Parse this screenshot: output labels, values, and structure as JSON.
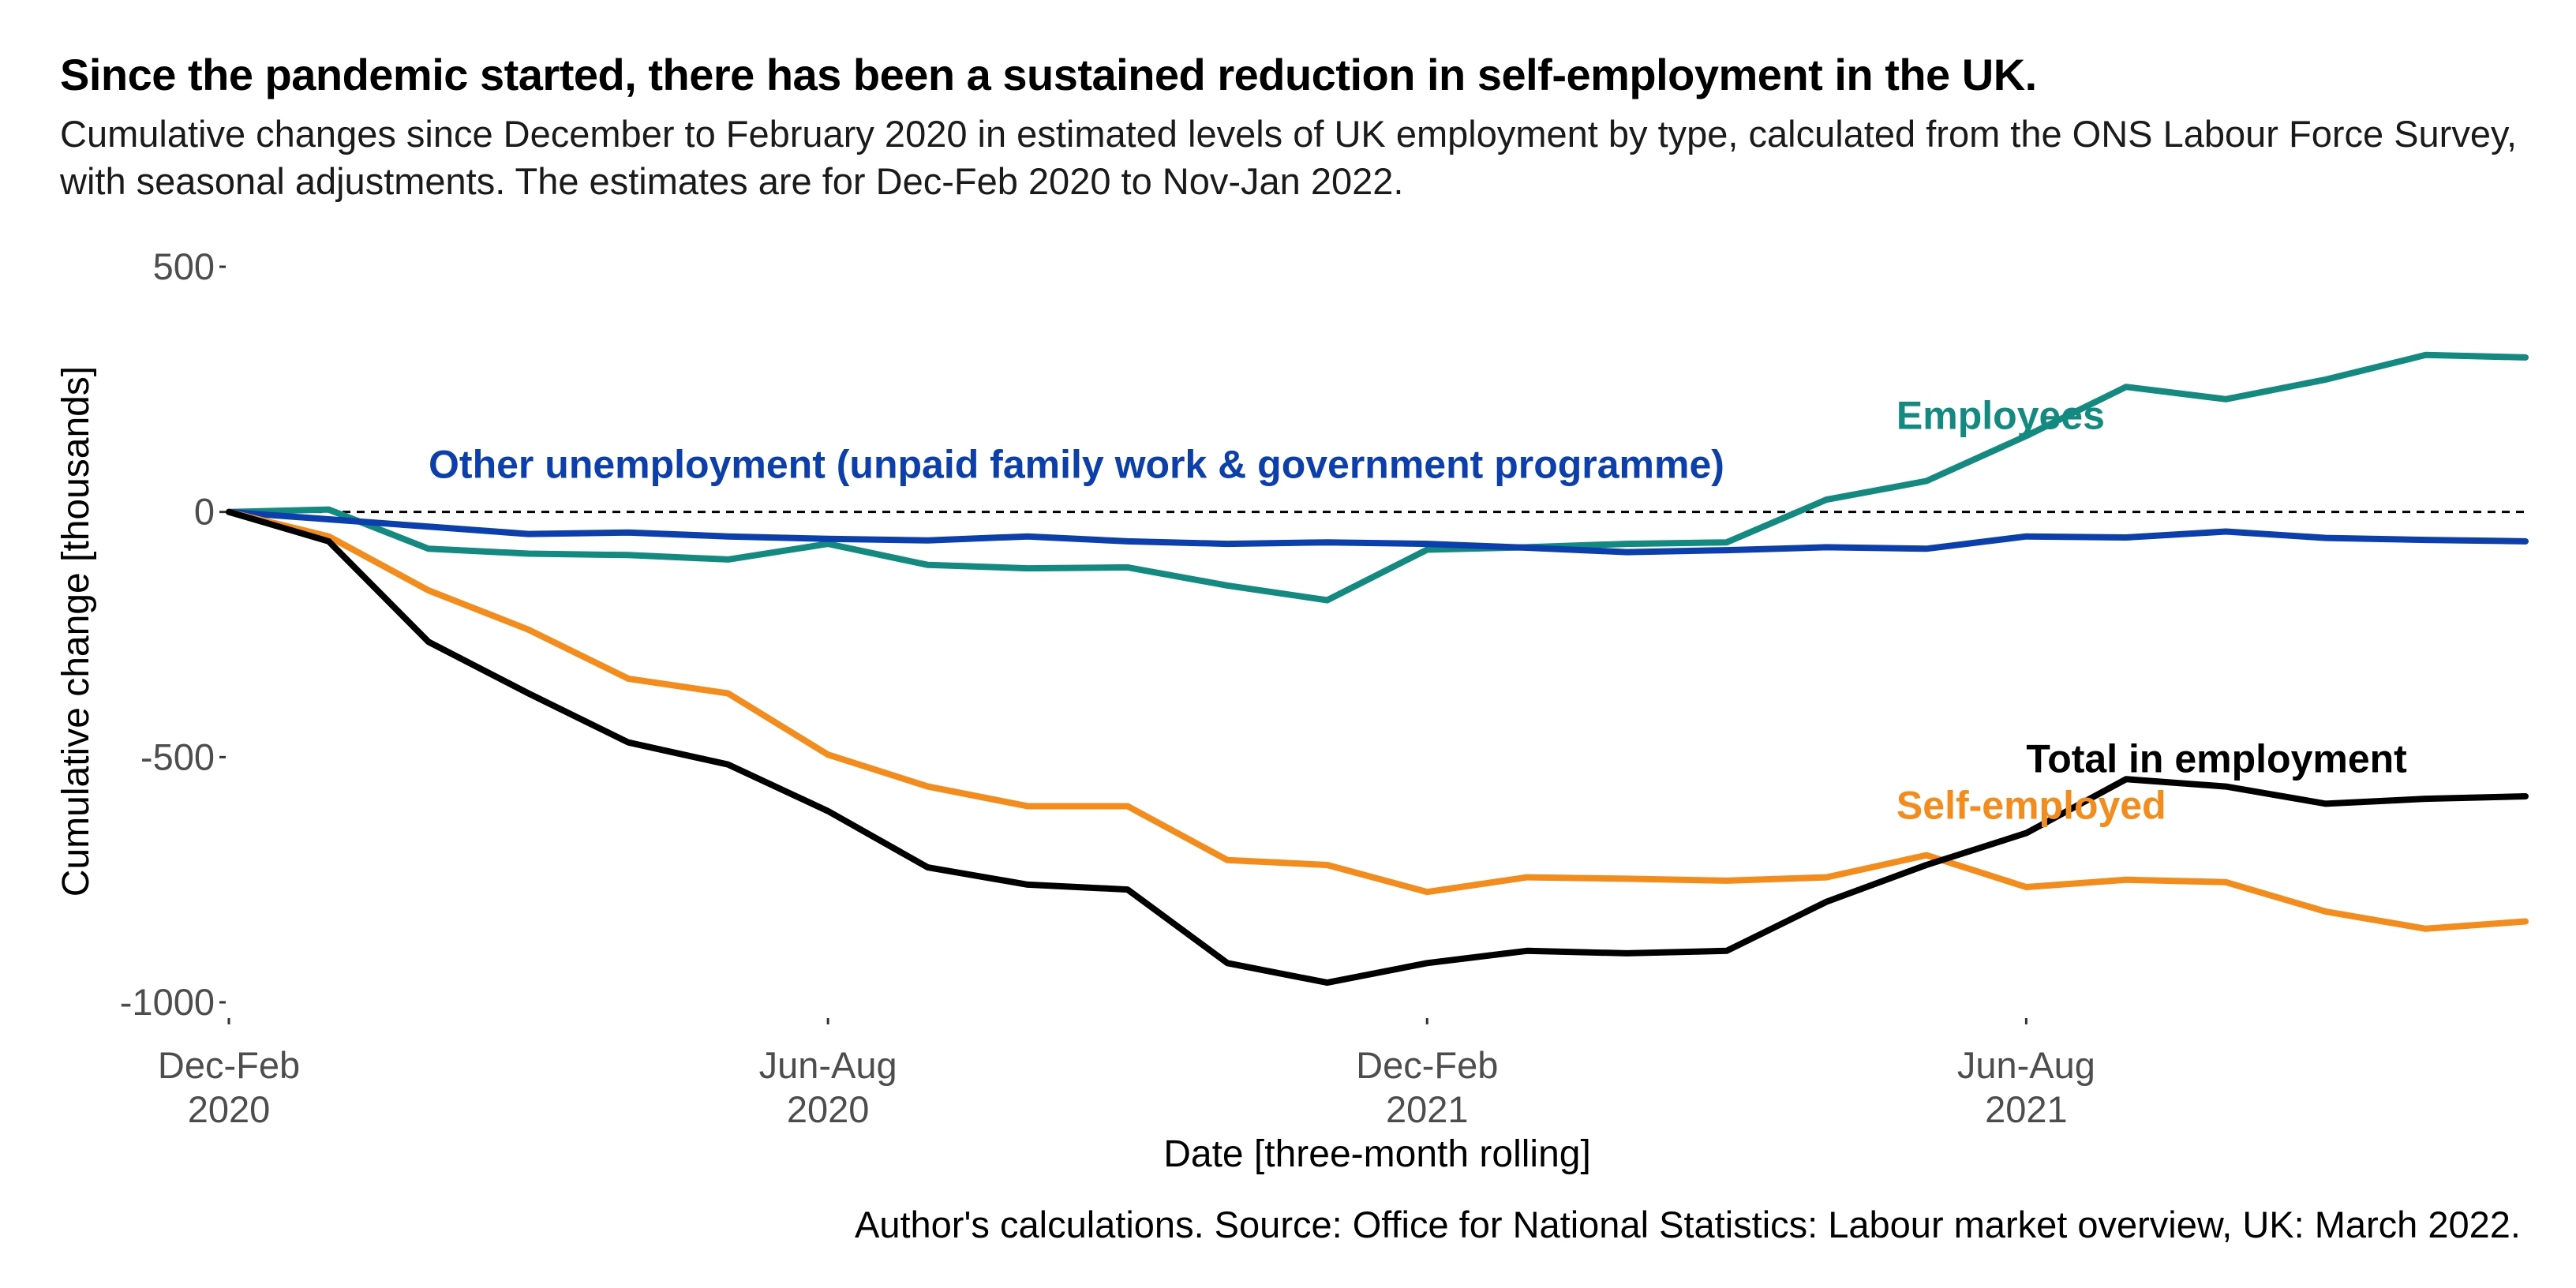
{
  "title": "Since the pandemic started, there has been a sustained reduction in self-employment in the UK.",
  "subtitle": "Cumulative changes since December to February 2020 in estimated levels of UK employment by type, calculated from the ONS Labour Force Survey, with seasonal adjustments. The estimates are for Dec-Feb 2020 to Nov-Jan 2022.",
  "caption": "Author's calculations. Source: Office for National Statistics: Labour market overview, UK: March 2022.",
  "chart_data": {
    "type": "line",
    "xlabel": "Date [three-month rolling]",
    "ylabel": "Cumulative change [thousands]",
    "ylim": [
      -1000,
      500
    ],
    "yticks": [
      {
        "value": 500,
        "label": "500"
      },
      {
        "value": 0,
        "label": "0"
      },
      {
        "value": -500,
        "label": "-500"
      },
      {
        "value": -1000,
        "label": "-1000"
      }
    ],
    "xticks": [
      {
        "index": 0,
        "line1": "Dec-Feb",
        "line2": "2020"
      },
      {
        "index": 6,
        "line1": "Jun-Aug",
        "line2": "2020"
      },
      {
        "index": 12,
        "line1": "Dec-Feb",
        "line2": "2021"
      },
      {
        "index": 18,
        "line1": "Jun-Aug",
        "line2": "2021"
      }
    ],
    "x": [
      "Dec-Feb 2020",
      "Jan-Mar 2020",
      "Feb-Apr 2020",
      "Mar-May 2020",
      "Apr-Jun 2020",
      "May-Jul 2020",
      "Jun-Aug 2020",
      "Jul-Sep 2020",
      "Aug-Oct 2020",
      "Sep-Nov 2020",
      "Oct-Dec 2020",
      "Nov-Jan 2021",
      "Dec-Feb 2021",
      "Jan-Mar 2021",
      "Feb-Apr 2021",
      "Mar-May 2021",
      "Apr-Jun 2021",
      "May-Jul 2021",
      "Jun-Aug 2021",
      "Jul-Sep 2021",
      "Aug-Oct 2021",
      "Sep-Nov 2021",
      "Oct-Dec 2021",
      "Nov-Jan 2022"
    ],
    "zero_line": "dashed",
    "grid": false,
    "series": [
      {
        "name": "Employees",
        "color": "#128a80",
        "values": [
          0,
          5,
          -75,
          -85,
          -88,
          -97,
          -65,
          -108,
          -115,
          -113,
          -150,
          -180,
          -77,
          -72,
          -65,
          -62,
          25,
          63,
          155,
          255,
          230,
          270,
          320,
          315
        ],
        "label_index": 16.7,
        "label_value": 195
      },
      {
        "name": "Other unemployment (unpaid family work & government programme)",
        "color": "#0b3fae",
        "values": [
          0,
          -15,
          -30,
          -45,
          -42,
          -50,
          -55,
          -58,
          -50,
          -60,
          -65,
          -62,
          -65,
          -73,
          -82,
          -78,
          -72,
          -75,
          -50,
          -52,
          -40,
          -53,
          -57,
          -60
        ],
        "label_index": 2.0,
        "label_value": 95
      },
      {
        "name": "Self-employed",
        "color": "#f48c1c",
        "values": [
          0,
          -50,
          -160,
          -240,
          -340,
          -370,
          -495,
          -560,
          -600,
          -600,
          -710,
          -720,
          -775,
          -745,
          -748,
          -752,
          -745,
          -700,
          -765,
          -750,
          -755,
          -815,
          -850,
          -835
        ],
        "label_index": 16.7,
        "label_value": -600
      },
      {
        "name": "Total in employment",
        "color": "#000000",
        "values": [
          0,
          -60,
          -265,
          -370,
          -470,
          -515,
          -610,
          -725,
          -760,
          -770,
          -920,
          -960,
          -920,
          -895,
          -900,
          -895,
          -795,
          -720,
          -655,
          -545,
          -560,
          -595,
          -585,
          -580
        ],
        "label_index": 18.0,
        "label_value": -505
      }
    ]
  }
}
